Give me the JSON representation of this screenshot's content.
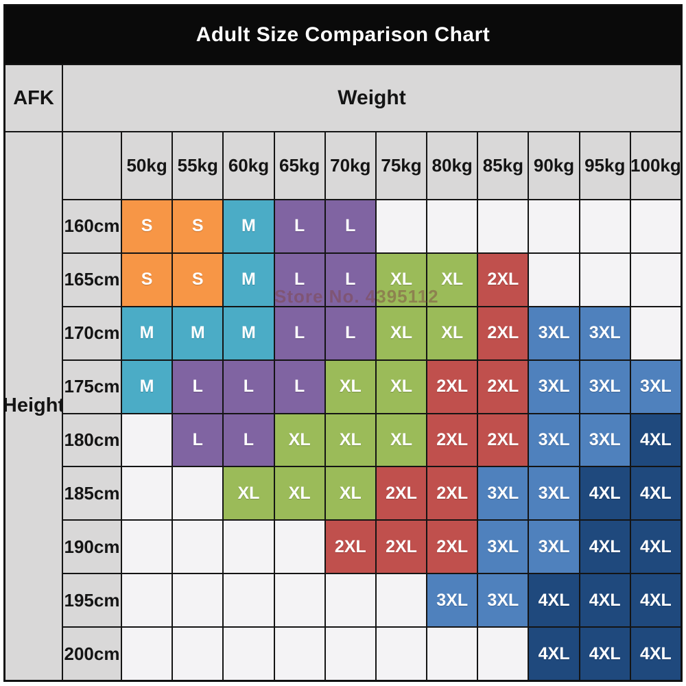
{
  "title": "Adult Size Comparison Chart",
  "corner_label": "AFK",
  "weight_axis_label": "Weight",
  "height_axis_label": "Height",
  "watermark": "Store No. 4395112",
  "weights": [
    "50kg",
    "55kg",
    "60kg",
    "65kg",
    "70kg",
    "75kg",
    "80kg",
    "85kg",
    "90kg",
    "95kg",
    "100kg"
  ],
  "heights": [
    "160cm",
    "165cm",
    "170cm",
    "175cm",
    "180cm",
    "185cm",
    "190cm",
    "195cm",
    "200cm"
  ],
  "size_colors": {
    "S": "#F79646",
    "M": "#4BACC6",
    "L": "#8064A2",
    "XL": "#9BBB59",
    "2XL": "#C0504D",
    "3XL": "#4F81BD",
    "4XL": "#1F497D"
  },
  "grid": [
    [
      "S",
      "S",
      "M",
      "L",
      "L",
      "",
      "",
      "",
      "",
      "",
      ""
    ],
    [
      "S",
      "S",
      "M",
      "L",
      "L",
      "XL",
      "XL",
      "2XL",
      "",
      "",
      ""
    ],
    [
      "M",
      "M",
      "M",
      "L",
      "L",
      "XL",
      "XL",
      "2XL",
      "3XL",
      "3XL",
      ""
    ],
    [
      "M",
      "L",
      "L",
      "L",
      "XL",
      "XL",
      "2XL",
      "2XL",
      "3XL",
      "3XL",
      "3XL"
    ],
    [
      "",
      "L",
      "L",
      "XL",
      "XL",
      "XL",
      "2XL",
      "2XL",
      "3XL",
      "3XL",
      "4XL"
    ],
    [
      "",
      "",
      "XL",
      "XL",
      "XL",
      "2XL",
      "2XL",
      "3XL",
      "3XL",
      "4XL",
      "4XL"
    ],
    [
      "",
      "",
      "",
      "",
      "2XL",
      "2XL",
      "2XL",
      "3XL",
      "3XL",
      "4XL",
      "4XL"
    ],
    [
      "",
      "",
      "",
      "",
      "",
      "",
      "3XL",
      "3XL",
      "4XL",
      "4XL",
      "4XL"
    ],
    [
      "",
      "",
      "",
      "",
      "",
      "",
      "",
      "",
      "4XL",
      "4XL",
      "4XL"
    ]
  ],
  "chart_data": {
    "type": "heatmap",
    "title": "Adult Size Comparison Chart",
    "xlabel": "Weight",
    "ylabel": "Height",
    "x": [
      "50kg",
      "55kg",
      "60kg",
      "65kg",
      "70kg",
      "75kg",
      "80kg",
      "85kg",
      "90kg",
      "95kg",
      "100kg"
    ],
    "y": [
      "160cm",
      "165cm",
      "170cm",
      "175cm",
      "180cm",
      "185cm",
      "190cm",
      "195cm",
      "200cm"
    ],
    "values": [
      [
        "S",
        "S",
        "M",
        "L",
        "L",
        "",
        "",
        "",
        "",
        "",
        ""
      ],
      [
        "S",
        "S",
        "M",
        "L",
        "L",
        "XL",
        "XL",
        "2XL",
        "",
        "",
        ""
      ],
      [
        "M",
        "M",
        "M",
        "L",
        "L",
        "XL",
        "XL",
        "2XL",
        "3XL",
        "3XL",
        ""
      ],
      [
        "M",
        "L",
        "L",
        "L",
        "XL",
        "XL",
        "2XL",
        "2XL",
        "3XL",
        "3XL",
        "3XL"
      ],
      [
        "",
        "L",
        "L",
        "XL",
        "XL",
        "XL",
        "2XL",
        "2XL",
        "3XL",
        "3XL",
        "4XL"
      ],
      [
        "",
        "",
        "XL",
        "XL",
        "XL",
        "2XL",
        "2XL",
        "3XL",
        "3XL",
        "4XL",
        "4XL"
      ],
      [
        "",
        "",
        "",
        "",
        "2XL",
        "2XL",
        "2XL",
        "3XL",
        "3XL",
        "4XL",
        "4XL"
      ],
      [
        "",
        "",
        "",
        "",
        "",
        "",
        "3XL",
        "3XL",
        "4XL",
        "4XL",
        "4XL"
      ],
      [
        "",
        "",
        "",
        "",
        "",
        "",
        "",
        "",
        "4XL",
        "4XL",
        "4XL"
      ]
    ],
    "legend": {
      "S": "#F79646",
      "M": "#4BACC6",
      "L": "#8064A2",
      "XL": "#9BBB59",
      "2XL": "#C0504D",
      "3XL": "#4F81BD",
      "4XL": "#1F497D"
    },
    "grid_lines": true,
    "legend_position": "none"
  }
}
